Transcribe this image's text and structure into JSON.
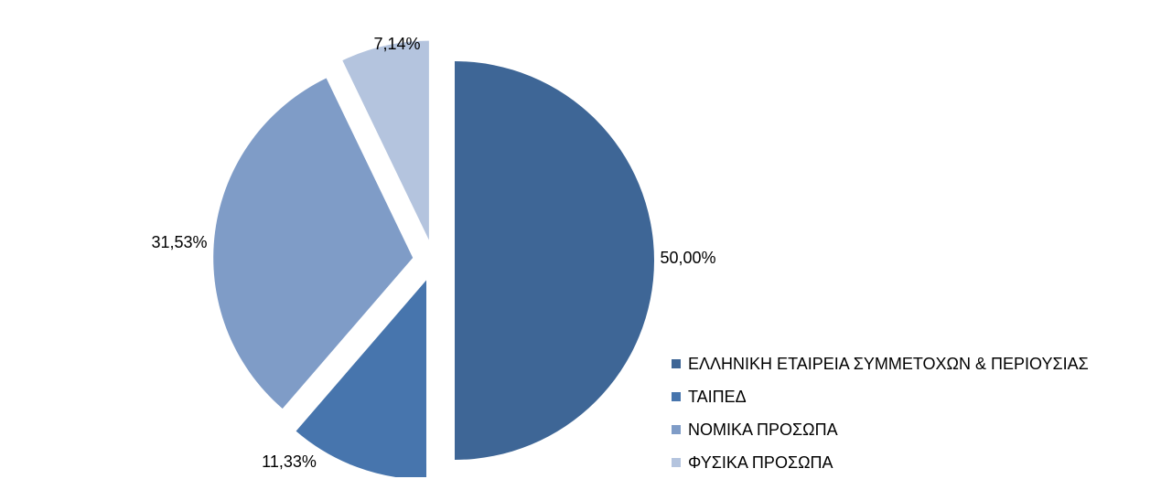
{
  "chart_data": {
    "type": "pie",
    "exploded": true,
    "start_angle_deg": 0,
    "direction": "clockwise",
    "legend_position": "right-bottom",
    "slices": [
      {
        "label": "ΕΛΛΗΝΙΚΗ ΕΤΑΙΡΕΙΑ ΣΥΜΜΕΤΟΧΩΝ & ΠΕΡΙΟΥΣΙΑΣ",
        "value": 50.0,
        "display": "50,00%",
        "color": "#3E6696"
      },
      {
        "label": "ΤΑΙΠΕΔ",
        "value": 11.33,
        "display": "11,33%",
        "color": "#4775AD"
      },
      {
        "label": "ΝΟΜΙΚΑ ΠΡΟΣΩΠΑ",
        "value": 31.53,
        "display": "31,53%",
        "color": "#7F9CC7"
      },
      {
        "label": "ΦΥΣΙΚΑ ΠΡΟΣΩΠΑ",
        "value": 7.14,
        "display": "7,14%",
        "color": "#B4C4DE"
      }
    ]
  }
}
